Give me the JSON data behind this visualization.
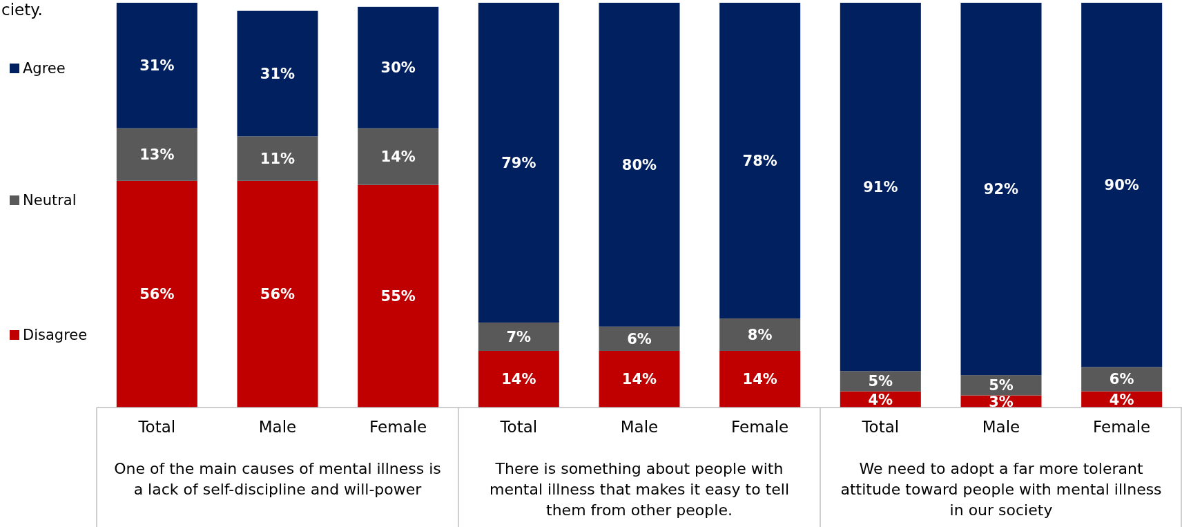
{
  "chart_data": {
    "type": "bar",
    "stacked": true,
    "legend": "left",
    "ylim": [
      0,
      100
    ],
    "tick_labels": "x",
    "categories": [
      "Total",
      "Male",
      "Female",
      "Total",
      "Male",
      "Female",
      "Total",
      "Male",
      "Female"
    ],
    "series": [
      {
        "name": "Disagree",
        "color": "#c00000",
        "values": [
          56,
          56,
          55,
          14,
          14,
          14,
          4,
          3,
          4
        ],
        "value_labels": [
          "56%",
          "56%",
          "55%",
          "14%",
          "14%",
          "14%",
          "4%",
          "3%",
          "4%"
        ]
      },
      {
        "name": "Neutral",
        "color": "#595959",
        "values": [
          13,
          11,
          14,
          7,
          6,
          8,
          5,
          5,
          6
        ],
        "value_labels": [
          "13%",
          "11%",
          "14%",
          "7%",
          "6%",
          "8%",
          "5%",
          "5%",
          "6%"
        ]
      },
      {
        "name": "Agree",
        "color": "#002060",
        "values": [
          31,
          31,
          30,
          79,
          80,
          78,
          91,
          92,
          90
        ],
        "value_labels": [
          "31%",
          "31%",
          "30%",
          "79%",
          "80%",
          "78%",
          "91%",
          "92%",
          "90%"
        ]
      }
    ],
    "annotations": [
      "ciety.",
      "One of the main causes of mental illness is\na lack of self-discipline and will-power",
      "There is something about people with\nmental illness that makes it easy to tell\nthem from other people.",
      "We need to adopt a far more tolerant\nattitude toward people with mental illness\nin our society"
    ]
  }
}
